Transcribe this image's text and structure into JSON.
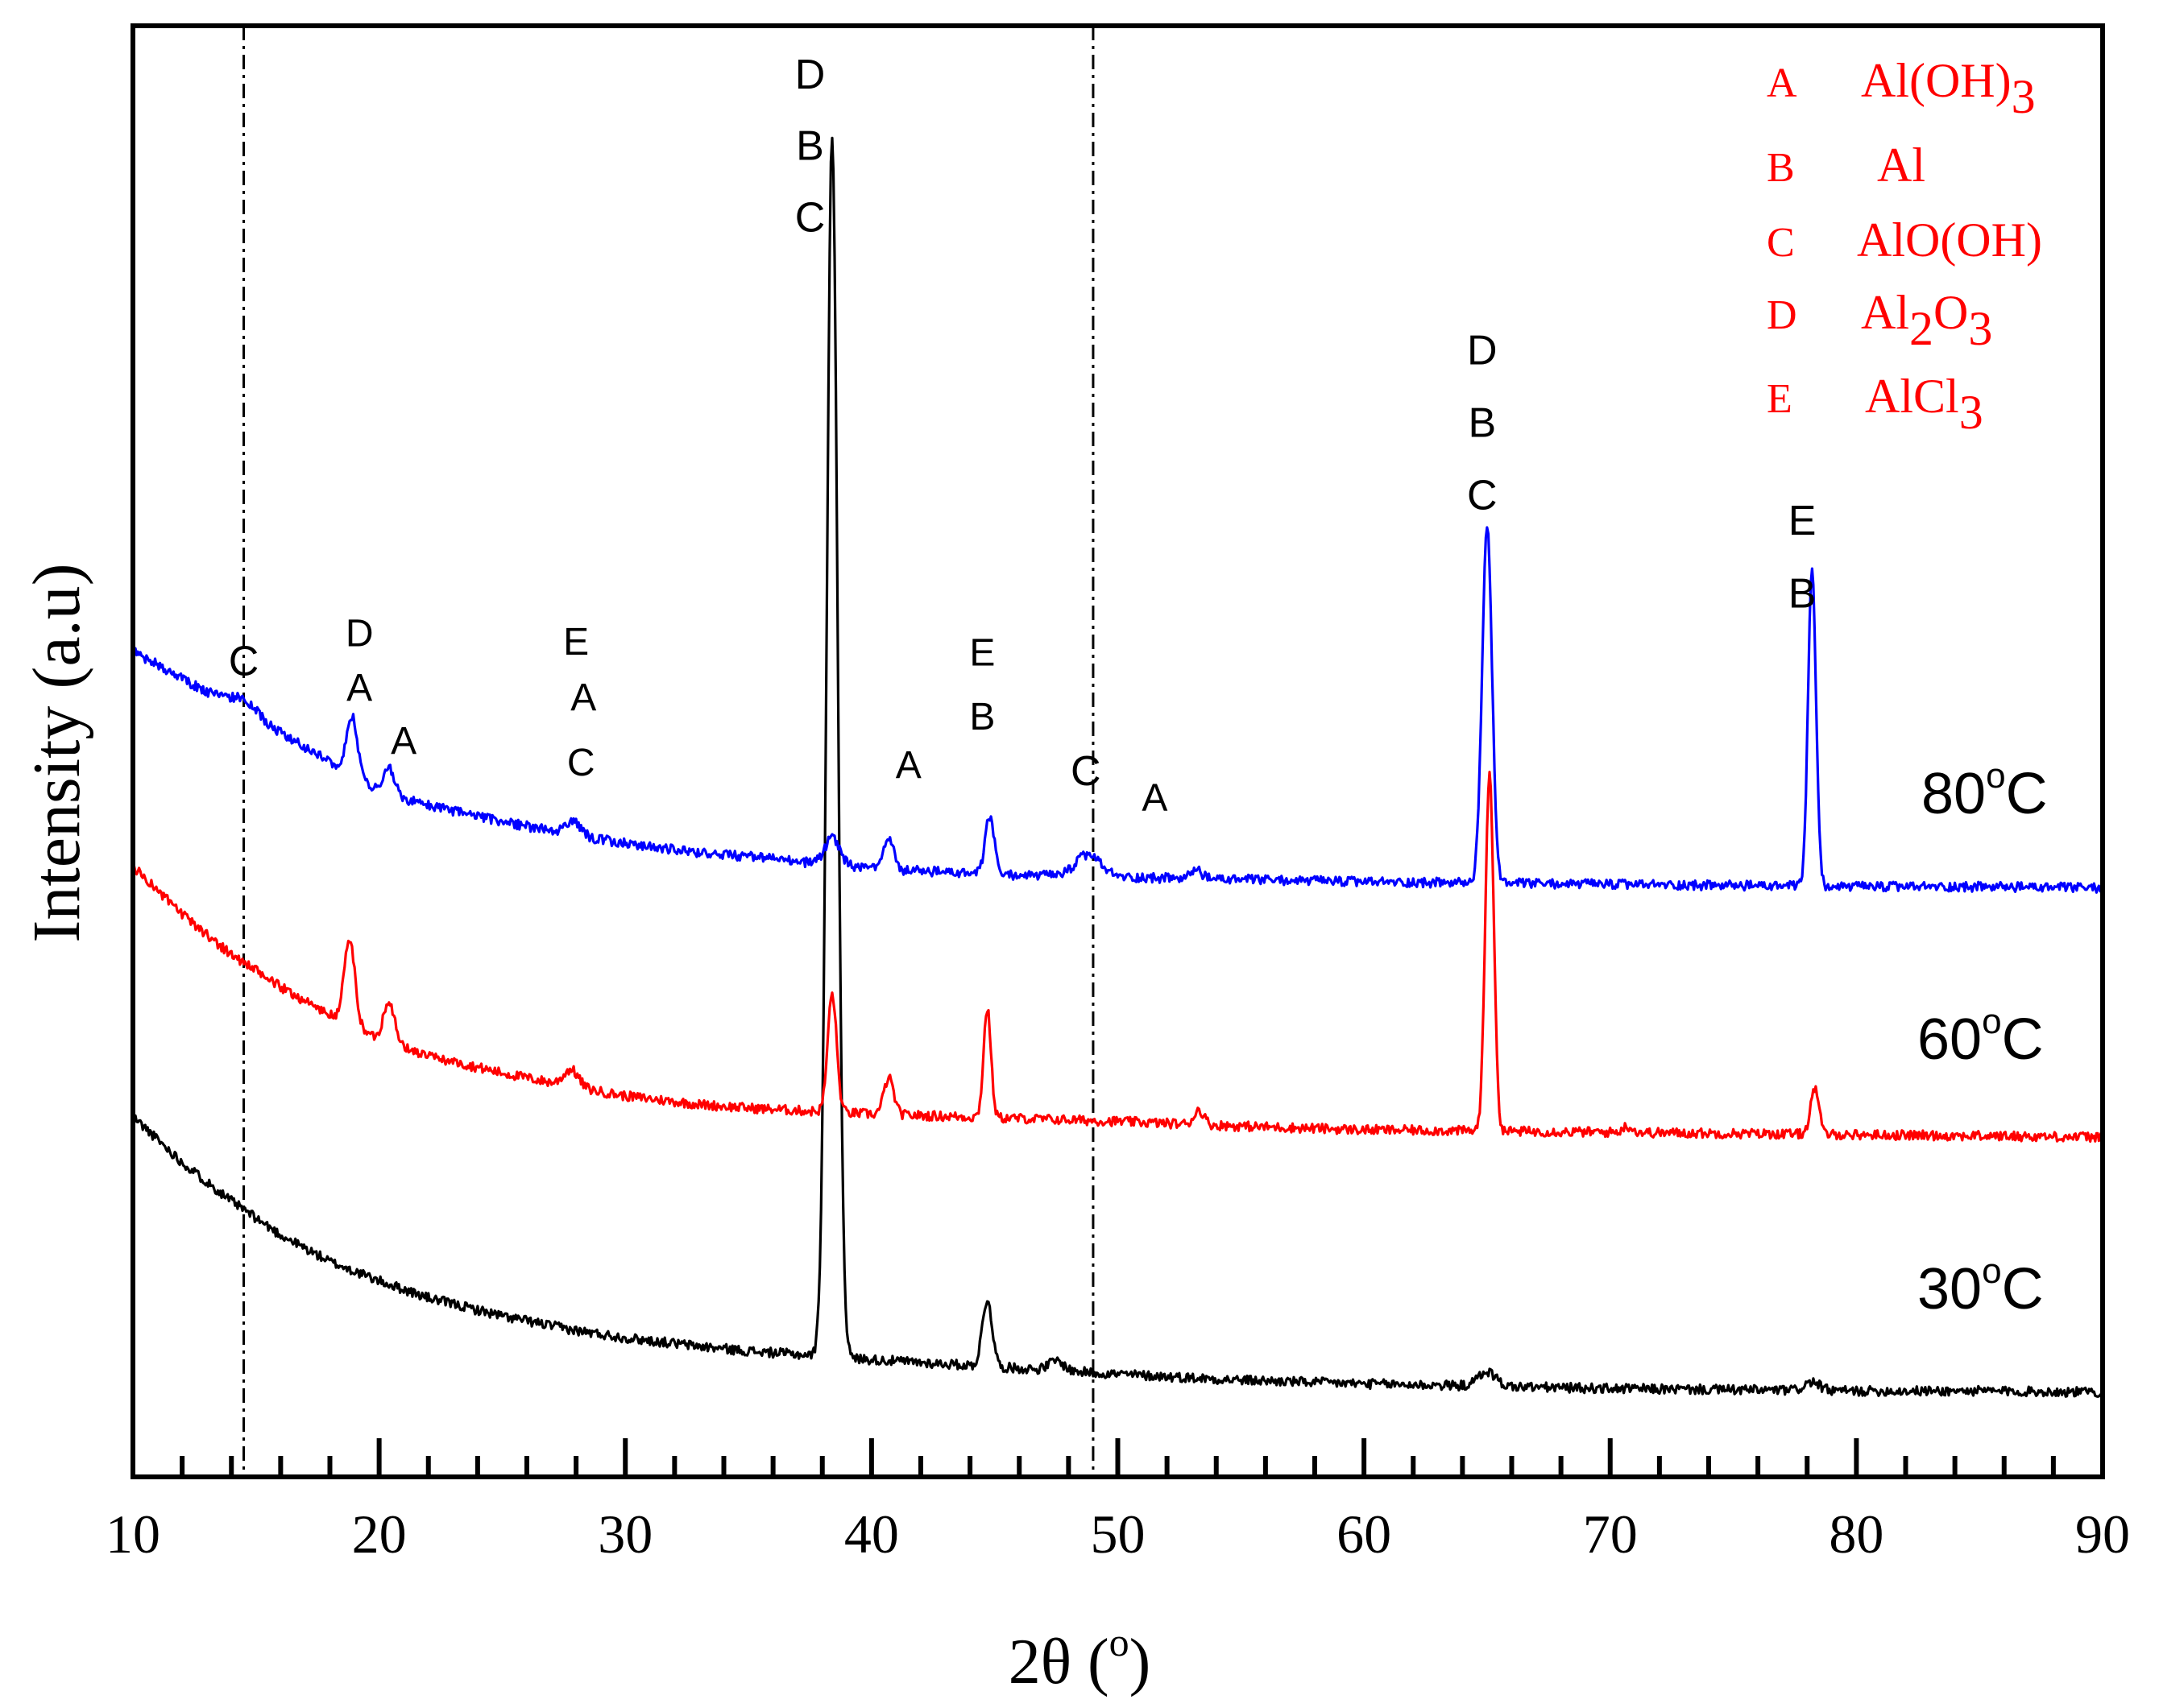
{
  "chart_data": {
    "type": "line",
    "title": "",
    "xlabel": "2θ (°)",
    "xlabel_main": "2θ (",
    "xlabel_sup": "o",
    "xlabel_close": ")",
    "ylabel": "Intensity (a.u)",
    "xlim": [
      10,
      90
    ],
    "ylim": [
      0,
      1200
    ],
    "y_ticks_shown": false,
    "x_ticks": [
      10,
      20,
      30,
      40,
      50,
      60,
      70,
      80,
      90
    ],
    "x_minor_step": 2,
    "reference_lines": [
      14.5,
      49
    ],
    "series": [
      {
        "name": "30°C",
        "label_main": "30",
        "label_sup": "o",
        "label_unit": "C",
        "color": "#000000",
        "noise": 4,
        "seed": 11,
        "baseline": [
          [
            10,
            298
          ],
          [
            12,
            260
          ],
          [
            14,
            228
          ],
          [
            16,
            200
          ],
          [
            18,
            178
          ],
          [
            20,
            162
          ],
          [
            22,
            148
          ],
          [
            25,
            133
          ],
          [
            28,
            121
          ],
          [
            30,
            115
          ],
          [
            33,
            108
          ],
          [
            35,
            104
          ],
          [
            38,
            100
          ],
          [
            40,
            97
          ],
          [
            45,
            91
          ],
          [
            50,
            85
          ],
          [
            55,
            80
          ],
          [
            60,
            77
          ],
          [
            65,
            75
          ],
          [
            70,
            73
          ],
          [
            75,
            72
          ],
          [
            80,
            71
          ],
          [
            85,
            71
          ],
          [
            90,
            70
          ]
        ],
        "peaks": [
          [
            38.4,
            1010,
            0.22
          ],
          [
            44.7,
            55,
            0.2
          ],
          [
            47.5,
            8,
            0.3
          ],
          [
            65.0,
            12,
            0.35
          ],
          [
            78.2,
            7,
            0.3
          ]
        ]
      },
      {
        "name": "60°C",
        "label_main": "60",
        "label_sup": "o",
        "label_unit": "C",
        "color": "#ff0000",
        "noise": 4,
        "seed": 23,
        "baseline": [
          [
            10,
            505
          ],
          [
            12,
            465
          ],
          [
            14,
            432
          ],
          [
            16,
            405
          ],
          [
            18,
            382
          ],
          [
            20,
            362
          ],
          [
            22,
            348
          ],
          [
            25,
            334
          ],
          [
            28,
            322
          ],
          [
            30,
            315
          ],
          [
            33,
            308
          ],
          [
            35,
            305
          ],
          [
            38,
            302
          ],
          [
            40,
            300
          ],
          [
            45,
            297
          ],
          [
            50,
            294
          ],
          [
            55,
            290
          ],
          [
            60,
            287
          ],
          [
            65,
            286
          ],
          [
            70,
            285
          ],
          [
            75,
            284
          ],
          [
            80,
            283
          ],
          [
            85,
            282
          ],
          [
            90,
            281
          ]
        ],
        "peaks": [
          [
            18.8,
            70,
            0.22
          ],
          [
            20.4,
            35,
            0.22
          ],
          [
            27.8,
            14,
            0.3
          ],
          [
            38.4,
            98,
            0.18
          ],
          [
            40.7,
            30,
            0.2
          ],
          [
            44.7,
            90,
            0.15
          ],
          [
            53.3,
            12,
            0.2
          ],
          [
            65.1,
            298,
            0.17
          ],
          [
            70.7,
            5,
            0.2
          ],
          [
            78.3,
            38,
            0.17
          ]
        ]
      },
      {
        "name": "80°C",
        "label_main": "80",
        "label_sup": "o",
        "label_unit": "C",
        "color": "#0000ff",
        "noise": 4,
        "seed": 37,
        "baseline": [
          [
            10,
            683
          ],
          [
            12,
            660
          ],
          [
            14,
            638
          ],
          [
            16,
            615
          ],
          [
            18,
            592
          ],
          [
            20,
            567
          ],
          [
            22,
            555
          ],
          [
            25,
            542
          ],
          [
            28,
            530
          ],
          [
            30,
            524
          ],
          [
            33,
            516
          ],
          [
            35,
            513
          ],
          [
            38,
            507
          ],
          [
            40,
            503
          ],
          [
            45,
            498
          ],
          [
            50,
            496
          ],
          [
            55,
            494
          ],
          [
            60,
            492
          ],
          [
            65,
            491
          ],
          [
            70,
            490
          ],
          [
            75,
            489
          ],
          [
            80,
            488
          ],
          [
            85,
            488
          ],
          [
            90,
            487
          ]
        ],
        "peaks": [
          [
            14.5,
            10,
            0.6
          ],
          [
            18.9,
            48,
            0.22
          ],
          [
            20.4,
            22,
            0.22
          ],
          [
            27.9,
            12,
            0.3
          ],
          [
            38.4,
            22,
            0.3
          ],
          [
            40.7,
            25,
            0.2
          ],
          [
            44.8,
            48,
            0.18
          ],
          [
            48.8,
            18,
            0.5
          ],
          [
            53.2,
            8,
            0.2
          ],
          [
            65.0,
            295,
            0.2
          ],
          [
            78.2,
            262,
            0.16
          ]
        ]
      }
    ],
    "peak_labels": [
      {
        "text": "D",
        "x": 37.5,
        "y": 1148,
        "size": 52
      },
      {
        "text": "B",
        "x": 37.5,
        "y": 1089,
        "size": 52
      },
      {
        "text": "C",
        "x": 37.5,
        "y": 1030,
        "size": 52
      },
      {
        "text": "D",
        "x": 64.8,
        "y": 920,
        "size": 52
      },
      {
        "text": "B",
        "x": 64.8,
        "y": 860,
        "size": 52
      },
      {
        "text": "C",
        "x": 64.8,
        "y": 800,
        "size": 52
      },
      {
        "text": "E",
        "x": 77.8,
        "y": 779,
        "size": 52
      },
      {
        "text": "B",
        "x": 77.8,
        "y": 719,
        "size": 52
      },
      {
        "text": "C",
        "x": 14.5,
        "y": 663,
        "size": 52
      },
      {
        "text": "D",
        "x": 19.2,
        "y": 687,
        "size": 48
      },
      {
        "text": "A",
        "x": 19.2,
        "y": 642,
        "size": 48
      },
      {
        "text": "A",
        "x": 21.0,
        "y": 598,
        "size": 48
      },
      {
        "text": "E",
        "x": 28.0,
        "y": 680,
        "size": 48
      },
      {
        "text": "A",
        "x": 28.3,
        "y": 634,
        "size": 48
      },
      {
        "text": "C",
        "x": 28.2,
        "y": 580,
        "size": 48
      },
      {
        "text": "E",
        "x": 44.5,
        "y": 671,
        "size": 48
      },
      {
        "text": "B",
        "x": 44.5,
        "y": 618,
        "size": 48
      },
      {
        "text": "C",
        "x": 48.7,
        "y": 572,
        "size": 52
      },
      {
        "text": "A",
        "x": 51.5,
        "y": 551,
        "size": 48
      },
      {
        "text": "A",
        "x": 41.5,
        "y": 578,
        "size": 48
      }
    ],
    "legend": {
      "position": "top-right",
      "color": "#ff0000",
      "entries": [
        {
          "key": "A",
          "main": "Al(OH)",
          "sub": "3",
          "tail": ""
        },
        {
          "key": "B",
          "main": "Al",
          "sub": "",
          "tail": ""
        },
        {
          "key": "C",
          "main": "AlO(OH)",
          "sub": "",
          "tail": ""
        },
        {
          "key": "D",
          "main": "Al",
          "sub": "2",
          "tail": "O",
          "sub2": "3"
        },
        {
          "key": "E",
          "main": "AlCl",
          "sub": "3",
          "tail": ""
        }
      ]
    }
  }
}
